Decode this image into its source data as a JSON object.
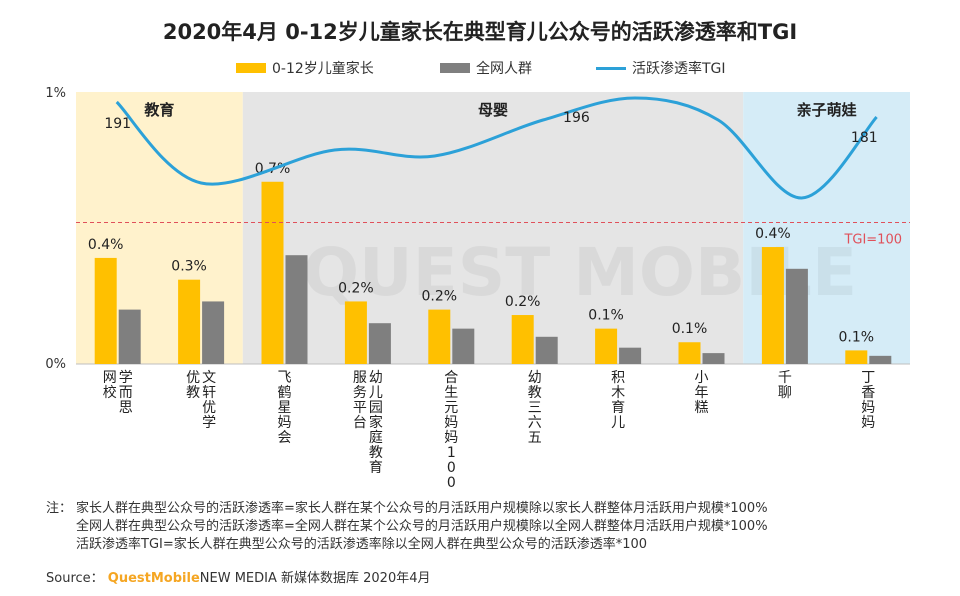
{
  "title": "2020年4月 0-12岁儿童家长在典型育儿公众号的活跃渗透率和TGI",
  "legend": {
    "parents": "0-12岁儿童家长",
    "all": "全网人群",
    "tgi": "活跃渗透率TGI"
  },
  "colors": {
    "parents": "#FFC000",
    "all": "#7F7F7F",
    "tgi": "#2CA1D8",
    "refline": "#E0505A",
    "edu_bg": "#FFF2CC",
    "baby_bg": "#E5E5E5",
    "kids_bg": "#D5ECF7"
  },
  "sections": [
    {
      "label": "教育",
      "start": 0,
      "end": 1,
      "color_key": "edu_bg"
    },
    {
      "label": "母婴",
      "start": 2,
      "end": 7,
      "color_key": "baby_bg"
    },
    {
      "label": "亲子萌娃",
      "start": 8,
      "end": 9,
      "color_key": "kids_bg"
    }
  ],
  "chart_data": {
    "type": "bar+line",
    "title": "2020年4月 0-12岁儿童家长在典型育儿公众号的活跃渗透率和TGI",
    "categories": [
      "学而思网校",
      "文轩优学优教",
      "飞鹤星妈会",
      "幼儿园家庭教育服务平台",
      "合生元妈妈100",
      "幼教三六五",
      "积木育儿",
      "小年糕",
      "千聊",
      "丁香妈妈"
    ],
    "category_lines": [
      [
        "学而思",
        "网校"
      ],
      [
        "文轩优学",
        "优教"
      ],
      [
        "飞鹤星妈会"
      ],
      [
        "幼儿园家庭教育",
        "服务平台"
      ],
      [
        "合生元妈妈100"
      ],
      [
        "幼教三六五"
      ],
      [
        "积木育儿"
      ],
      [
        "小年糕"
      ],
      [
        "千聊"
      ],
      [
        "丁香妈妈"
      ]
    ],
    "series": [
      {
        "name": "0-12岁儿童家长",
        "values": [
          0.39,
          0.31,
          0.67,
          0.23,
          0.2,
          0.18,
          0.13,
          0.08,
          0.43,
          0.05
        ],
        "labels": [
          "0.4%",
          "0.3%",
          "0.7%",
          "0.2%",
          "0.2%",
          "0.2%",
          "0.1%",
          "0.1%",
          "0.4%",
          "0.1%"
        ]
      },
      {
        "name": "全网人群",
        "values": [
          0.2,
          0.23,
          0.4,
          0.15,
          0.13,
          0.1,
          0.06,
          0.04,
          0.35,
          0.03
        ]
      }
    ],
    "tgi_line": {
      "name": "活跃渗透率TGI",
      "labeled_points": [
        {
          "index": 0,
          "label": "191"
        },
        {
          "index": 5.5,
          "label": "196"
        },
        {
          "index": 9,
          "label": "181"
        }
      ]
    },
    "tgi_reference": {
      "label": "TGI=100"
    },
    "y_ticks": [
      "0%",
      "1%"
    ],
    "ylim": [
      0,
      1
    ]
  },
  "notes": {
    "label": "注：",
    "lines": [
      "家长人群在典型公众号的活跃渗透率=家长人群在某个公众号的月活跃用户规模除以家长人群整体月活跃用户规模*100%",
      "全网人群在典型公众号的活跃渗透率=全网人群在某个公众号的月活跃用户规模除以全网人群整体月活跃用户规模*100%",
      "活跃渗透率TGI=家长人群在典型公众号的活跃渗透率除以全网人群在典型公众号的活跃渗透率*100"
    ]
  },
  "source": {
    "label": "Source：",
    "brand": "QuestMobile",
    "rest": "NEW MEDIA 新媒体数据库 2020年4月"
  },
  "watermark": "QUEST MOBILE"
}
